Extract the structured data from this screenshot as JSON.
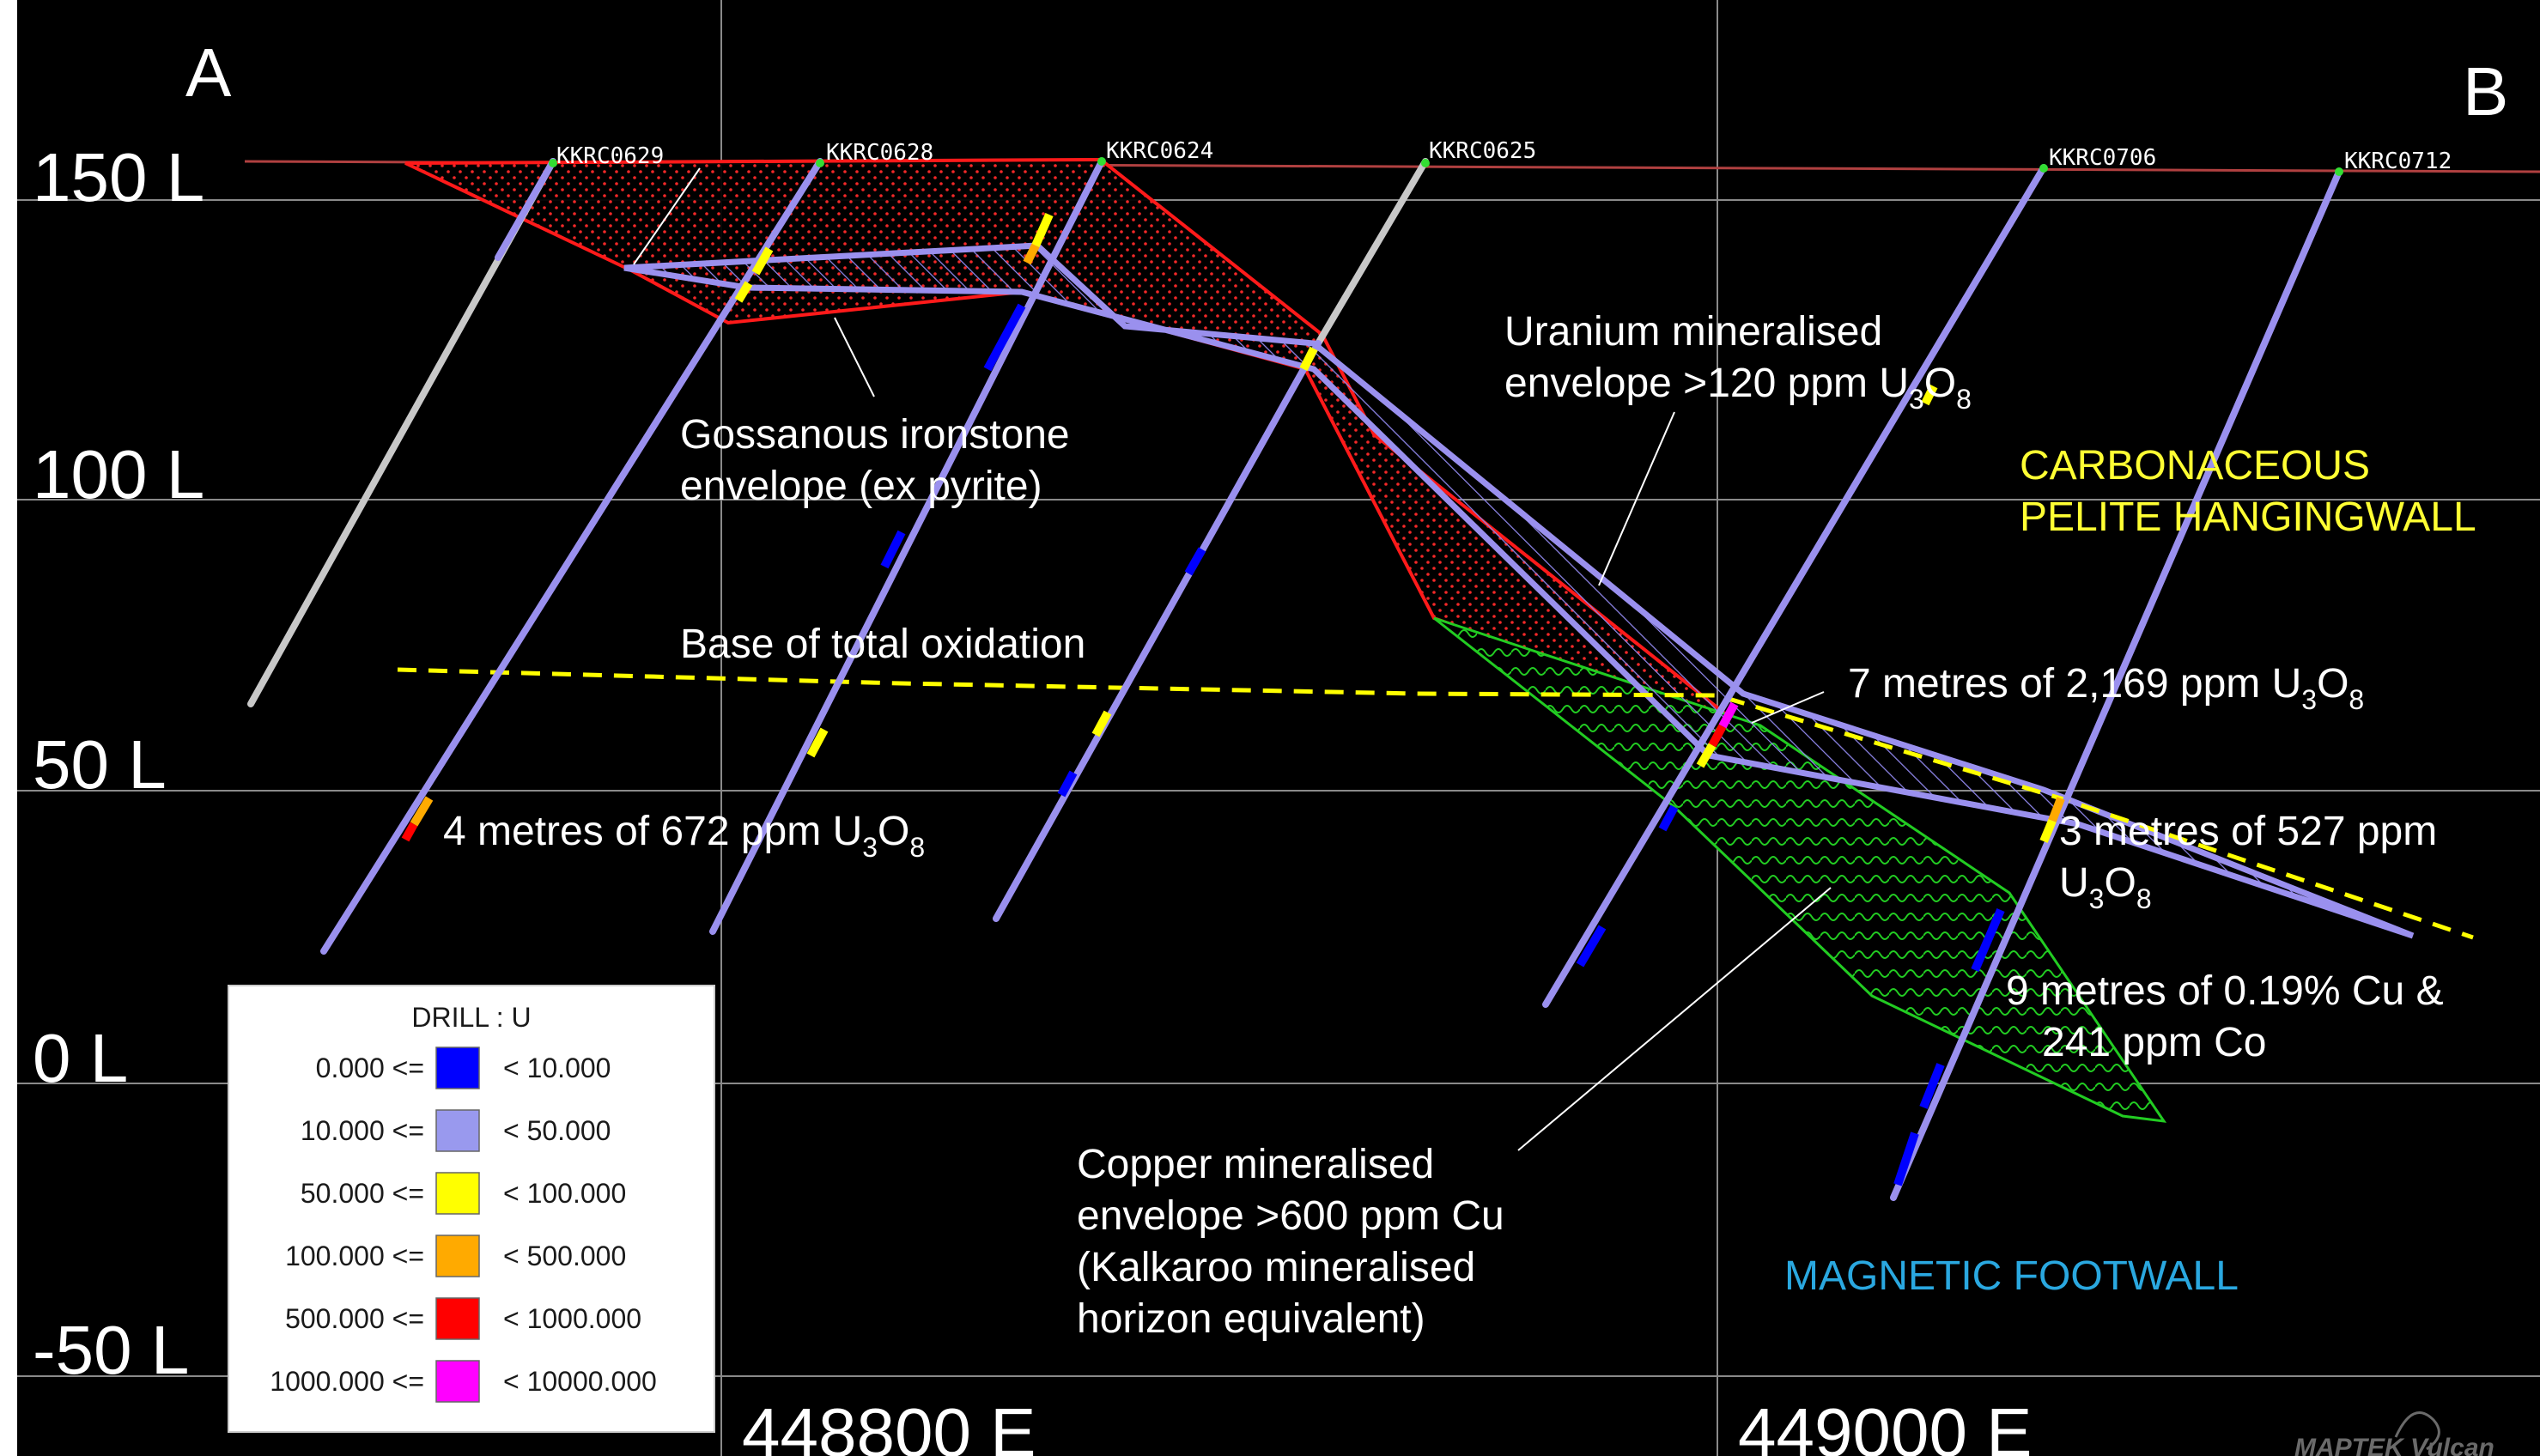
{
  "corners": {
    "left": "A",
    "right": "B"
  },
  "levels": [
    "150 L",
    "100 L",
    "50 L",
    "0 L",
    "-50 L"
  ],
  "eastings": [
    "448800 E",
    "449000 E"
  ],
  "drillholes": [
    "KKRC0629",
    "KKRC0628",
    "KKRC0624",
    "KKRC0625",
    "KKRC0706",
    "KKRC0712"
  ],
  "annotations": {
    "gossan": [
      "Gossanous ironstone",
      "envelope (ex pyrite)"
    ],
    "uranium": [
      "Uranium mineralised",
      "envelope >120 ppm U",
      "3",
      "O",
      "8"
    ],
    "oxidation": "Base of total oxidation",
    "carbonaceous": [
      "CARBONACEOUS",
      "PELITE HANGINGWALL"
    ],
    "interval_7m": [
      "7 metres of 2,169 ppm U",
      "3",
      "O",
      "8"
    ],
    "interval_4m": [
      "4 metres of 672 ppm U",
      "3",
      "O",
      "8"
    ],
    "interval_3m": [
      "3 metres of 527 ppm",
      "U",
      "3",
      "O",
      "8"
    ],
    "interval_9m": [
      "9 metres of 0.19% Cu &",
      "241 ppm Co"
    ],
    "copper": [
      "Copper mineralised",
      "envelope >600 ppm Cu",
      "(Kalkaroo mineralised",
      "horizon equivalent)"
    ],
    "magnetic": "MAGNETIC FOOTWALL"
  },
  "legend": {
    "title": "DRILL : U",
    "rows": [
      {
        "lower": "0.000 <=",
        "upper": "< 10.000",
        "color": "#0000ff"
      },
      {
        "lower": "10.000 <=",
        "upper": "< 50.000",
        "color": "#9999ee"
      },
      {
        "lower": "50.000 <=",
        "upper": "< 100.000",
        "color": "#ffff00"
      },
      {
        "lower": "100.000 <=",
        "upper": "< 500.000",
        "color": "#ffaa00"
      },
      {
        "lower": "500.000 <=",
        "upper": "< 1000.000",
        "color": "#ff0000"
      },
      {
        "lower": "1000.000 <=",
        "upper": "< 10000.000",
        "color": "#ff00ff"
      }
    ]
  },
  "logo": {
    "text": "MAPTEK Vulcan",
    "icon": "maptek-logo-icon"
  },
  "colors": {
    "background": "#000000",
    "grid": "#8a8a8a",
    "surface": "#b04040",
    "hole": "#9a90ee",
    "hole_grey": "#c8c8c8",
    "gossan_outline": "#ff1a1a",
    "copper_outline": "#22cc22",
    "oxidation": "#ffff00"
  }
}
